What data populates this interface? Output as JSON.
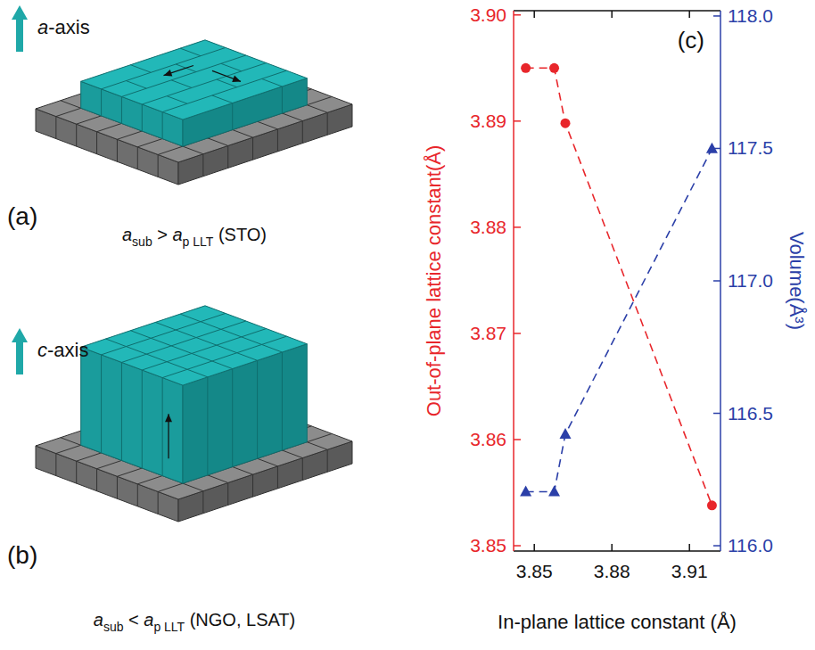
{
  "diagrams": [
    {
      "panel_label": "(a)",
      "axis_label": [
        {
          "text": "a",
          "italic": true
        },
        {
          "text": "-axis"
        }
      ],
      "caption": [
        {
          "text": "a",
          "italic": true
        },
        {
          "text": "sub",
          "sub": true
        },
        {
          "text": " > "
        },
        {
          "text": "a",
          "italic": true
        },
        {
          "text": "p LLT",
          "sub": true
        },
        {
          "text": " (STO)"
        }
      ]
    },
    {
      "panel_label": "(b)",
      "axis_label": [
        {
          "text": "c",
          "italic": true
        },
        {
          "text": "-axis"
        }
      ],
      "caption": [
        {
          "text": "a",
          "italic": true
        },
        {
          "text": "sub",
          "sub": true
        },
        {
          "text": " < "
        },
        {
          "text": "a",
          "italic": true
        },
        {
          "text": "p LLT",
          "sub": true
        },
        {
          "text": " (NGO, LSAT)"
        }
      ]
    }
  ],
  "chart_data": {
    "type": "line",
    "panel_label": "(c)",
    "x_label": "In-plane lattice constant (Å)",
    "y_label": "Out-of-plane lattice constant(Å)",
    "y2_label": "Volume(Å³)",
    "x": [
      3.8467,
      3.8577,
      3.862,
      3.9187
    ],
    "series": [
      {
        "color": "#e8262b",
        "marker": "circle",
        "line_style": "dashed",
        "values": [
          3.895,
          3.895,
          3.8898,
          3.8538
        ]
      },
      {
        "color": "#2b3fa8",
        "marker": "triangle",
        "line_style": "dashed",
        "axis": "y2",
        "values": [
          116.204,
          116.204,
          116.421,
          117.499
        ]
      }
    ],
    "xlim": [
      3.842,
      3.922
    ],
    "xticks": [
      3.85,
      3.88,
      3.91
    ],
    "ylim": [
      3.8495,
      3.9004
    ],
    "yticks": [
      3.85,
      3.86,
      3.87,
      3.88,
      3.89,
      {
        "value": 3.9,
        "label": "3.90"
      }
    ],
    "y2lim": [
      115.98,
      118.02
    ],
    "y2ticks": [
      {
        "value": 116,
        "label": "116.0"
      },
      {
        "value": 116.5,
        "label": "116.5"
      },
      {
        "value": 117,
        "label": "117.0"
      },
      {
        "value": 117.5,
        "label": "117.5"
      },
      {
        "value": 118,
        "label": "118.0"
      }
    ]
  }
}
